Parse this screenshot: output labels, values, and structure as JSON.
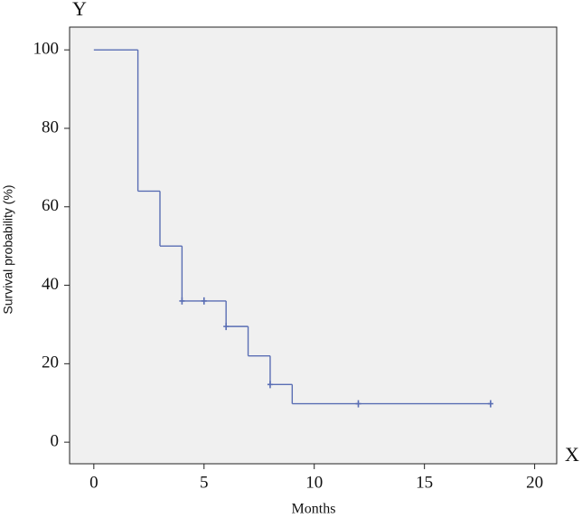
{
  "chart_data": {
    "type": "step",
    "y_axis_name": "Y",
    "x_axis_name": "X",
    "xlabel": "Months",
    "ylabel": "Survival probability (%)",
    "x": [
      0,
      2,
      3,
      4,
      6,
      7,
      8,
      9,
      18
    ],
    "values": [
      100,
      64,
      50,
      36,
      29.5,
      22,
      14.7,
      9.8,
      9.8
    ],
    "censor_x": [
      4,
      5,
      6,
      8,
      12,
      18
    ],
    "censor_values": [
      36,
      36,
      29.5,
      14.7,
      9.8,
      9.8
    ],
    "color": "#5a6eb4",
    "xlim": [
      -1.1,
      21
    ],
    "ylim": [
      -5.5,
      105.8
    ],
    "xticks": [
      0,
      5,
      10,
      15,
      20
    ],
    "yticks": [
      0,
      20,
      40,
      60,
      80,
      100
    ],
    "grid": false
  }
}
